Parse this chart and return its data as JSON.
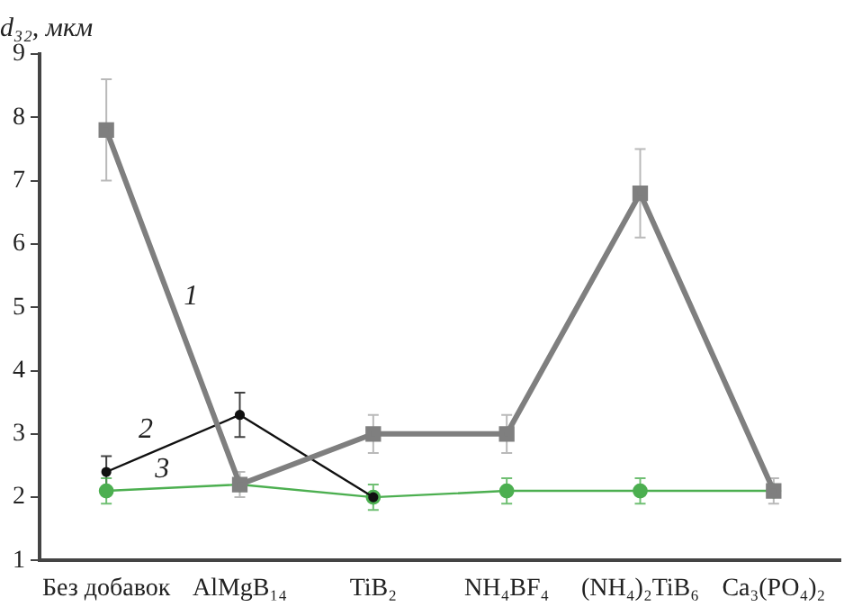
{
  "chart_data": {
    "type": "line",
    "ylabel": "d₃₂, мкм",
    "categories": [
      "Без добавок",
      "AlMgB₁₄",
      "TiB₂",
      "NH₄BF₄",
      "(NH₄)₂TiB₆",
      "Ca₃(PO₄)₂"
    ],
    "series": [
      {
        "name": "1",
        "color": "#7f7f7f",
        "marker": "square",
        "values": [
          7.8,
          2.2,
          3.0,
          3.0,
          6.8,
          2.1
        ],
        "errors": [
          0.8,
          0.2,
          0.3,
          0.3,
          0.7,
          0.2
        ]
      },
      {
        "name": "2",
        "color": "#111111",
        "marker": "circle",
        "values": [
          2.4,
          3.3,
          2.0,
          null,
          null,
          null
        ],
        "errors": [
          0.25,
          0.35,
          null,
          null,
          null,
          null
        ]
      },
      {
        "name": "3",
        "color": "#4caf50",
        "marker": "circle",
        "values": [
          2.1,
          2.2,
          2.0,
          2.1,
          2.1,
          2.1
        ],
        "errors": [
          0.2,
          null,
          0.2,
          0.2,
          0.2,
          null
        ]
      }
    ],
    "ylim": [
      1,
      9
    ],
    "yticks": [
      1,
      2,
      3,
      4,
      5,
      6,
      7,
      8,
      9
    ],
    "grid": false,
    "legend": false
  }
}
